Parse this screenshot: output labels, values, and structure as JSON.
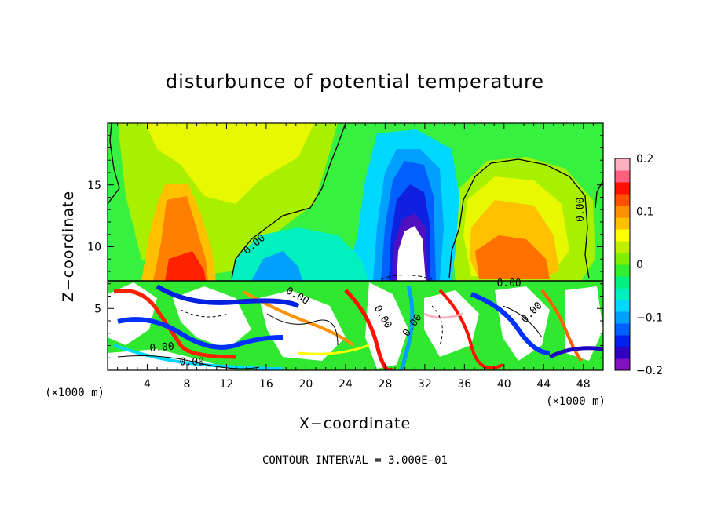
{
  "chart_data": {
    "type": "heatmap",
    "title": "disturbunce of potential temperature",
    "xlabel": "X−coordinate",
    "ylabel": "Z−coordinate",
    "x_unit": "(×1000 m)",
    "y_unit": "(×1000 m)",
    "xlim": [
      0,
      50
    ],
    "ylim": [
      0,
      20
    ],
    "x_ticks": [
      4,
      8,
      12,
      16,
      20,
      24,
      28,
      32,
      36,
      40,
      44,
      48
    ],
    "y_ticks": [
      5,
      10,
      15
    ],
    "x_tick_labels": [
      "4",
      "8",
      "12",
      "16",
      "20",
      "24",
      "28",
      "32",
      "36",
      "40",
      "44",
      "48"
    ],
    "y_tick_labels": [
      "5",
      "10",
      "15"
    ],
    "colorbar": {
      "range": [
        -0.2,
        0.2
      ],
      "tick_labels": [
        "0.2",
        "0.1",
        "0",
        "−0.1",
        "−0.2"
      ],
      "ticks": [
        0.2,
        0.1,
        0,
        -0.1,
        -0.2
      ],
      "colors": [
        "#8010c0",
        "#3000c0",
        "#0020f0",
        "#0060ff",
        "#00a0ff",
        "#00d8ff",
        "#00f0c0",
        "#00f080",
        "#30f030",
        "#80f000",
        "#c0f000",
        "#ffff00",
        "#ffc000",
        "#ff9000",
        "#ff5000",
        "#ff1000",
        "#ff6080",
        "#ffb0c0"
      ]
    },
    "contour_label": "0.00",
    "contour_interval_text": "CONTOUR INTERVAL = 3.000E−01",
    "layer_boundary_z": 7.2,
    "features": [
      {
        "kind": "warm",
        "x": 8.5,
        "z": 9.0,
        "value": 0.13
      },
      {
        "kind": "warm",
        "x": 41.0,
        "z": 9.5,
        "value": 0.12
      },
      {
        "kind": "warm_weak",
        "x": 22.0,
        "z": 17.0,
        "value": 0.06
      },
      {
        "kind": "cold",
        "x": 31.0,
        "z": 12.0,
        "value": -0.17
      },
      {
        "kind": "cold_weak",
        "x": 17.0,
        "z": 9.0,
        "value": -0.08
      }
    ]
  }
}
